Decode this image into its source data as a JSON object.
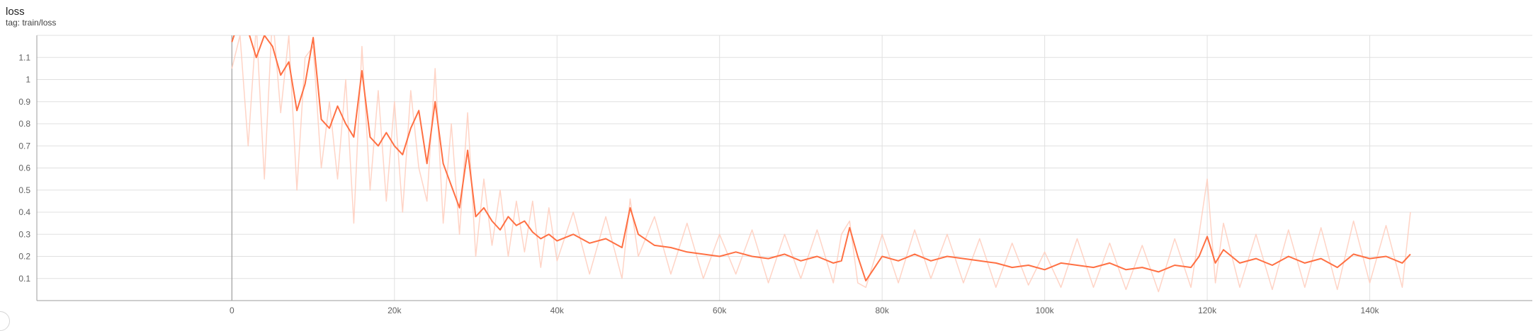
{
  "card": {
    "title": "loss",
    "subtitle": "tag: train/loss"
  },
  "colors": {
    "smoothed": "#ff7043",
    "raw": "#ffccbc",
    "grid": "#e0e0e0",
    "axis": "#9e9e9e"
  },
  "chart_data": {
    "type": "line",
    "title": "loss",
    "xlabel": "",
    "ylabel": "",
    "xlim": [
      -24000,
      160000
    ],
    "ylim": [
      0,
      1.2
    ],
    "x_ticks": [
      0,
      20000,
      40000,
      60000,
      80000,
      100000,
      120000,
      140000
    ],
    "x_tick_labels": [
      "0",
      "20k",
      "40k",
      "60k",
      "80k",
      "100k",
      "120k",
      "140k"
    ],
    "y_ticks": [
      0.1,
      0.2,
      0.3,
      0.4,
      0.5,
      0.6,
      0.7,
      0.8,
      0.9,
      1,
      1.1
    ],
    "y_tick_labels": [
      "0.1",
      "0.2",
      "0.3",
      "0.4",
      "0.5",
      "0.6",
      "0.7",
      "0.8",
      "0.9",
      "1",
      "1.1"
    ],
    "grid": true,
    "legend": "none",
    "series": [
      {
        "role": "smoothed",
        "x": [
          0,
          1000,
          2000,
          3000,
          4000,
          5000,
          6000,
          7000,
          8000,
          9000,
          10000,
          11000,
          12000,
          13000,
          14000,
          15000,
          16000,
          17000,
          18000,
          19000,
          20000,
          21000,
          22000,
          23000,
          24000,
          25000,
          26000,
          27000,
          28000,
          29000,
          30000,
          31000,
          32000,
          33000,
          34000,
          35000,
          36000,
          37000,
          38000,
          39000,
          40000,
          42000,
          44000,
          46000,
          48000,
          49000,
          50000,
          52000,
          54000,
          56000,
          58000,
          60000,
          62000,
          64000,
          66000,
          68000,
          70000,
          72000,
          74000,
          75000,
          76000,
          77000,
          78000,
          80000,
          82000,
          84000,
          86000,
          88000,
          90000,
          92000,
          94000,
          96000,
          98000,
          100000,
          102000,
          104000,
          106000,
          108000,
          110000,
          112000,
          114000,
          116000,
          118000,
          119000,
          120000,
          121000,
          122000,
          124000,
          126000,
          128000,
          130000,
          132000,
          134000,
          136000,
          138000,
          140000,
          142000,
          144000,
          145000
        ],
        "y": [
          1.17,
          1.28,
          1.22,
          1.1,
          1.2,
          1.15,
          1.02,
          1.08,
          0.86,
          0.98,
          1.19,
          0.82,
          0.78,
          0.88,
          0.8,
          0.74,
          1.04,
          0.74,
          0.7,
          0.76,
          0.7,
          0.66,
          0.78,
          0.86,
          0.62,
          0.9,
          0.62,
          0.52,
          0.42,
          0.68,
          0.38,
          0.42,
          0.36,
          0.32,
          0.38,
          0.34,
          0.36,
          0.31,
          0.28,
          0.3,
          0.27,
          0.3,
          0.26,
          0.28,
          0.24,
          0.42,
          0.3,
          0.25,
          0.24,
          0.22,
          0.21,
          0.2,
          0.22,
          0.2,
          0.19,
          0.21,
          0.18,
          0.2,
          0.17,
          0.18,
          0.33,
          0.2,
          0.09,
          0.2,
          0.18,
          0.21,
          0.18,
          0.2,
          0.19,
          0.18,
          0.17,
          0.15,
          0.16,
          0.14,
          0.17,
          0.16,
          0.15,
          0.17,
          0.14,
          0.15,
          0.13,
          0.16,
          0.15,
          0.2,
          0.29,
          0.17,
          0.23,
          0.17,
          0.19,
          0.16,
          0.2,
          0.17,
          0.19,
          0.15,
          0.21,
          0.19,
          0.2,
          0.17,
          0.21
        ]
      },
      {
        "role": "raw",
        "x": [
          0,
          1000,
          2000,
          3000,
          4000,
          5000,
          6000,
          7000,
          8000,
          9000,
          10000,
          11000,
          12000,
          13000,
          14000,
          15000,
          16000,
          17000,
          18000,
          19000,
          20000,
          21000,
          22000,
          23000,
          24000,
          25000,
          26000,
          27000,
          28000,
          29000,
          30000,
          31000,
          32000,
          33000,
          34000,
          35000,
          36000,
          37000,
          38000,
          39000,
          40000,
          42000,
          44000,
          46000,
          48000,
          49000,
          50000,
          52000,
          54000,
          56000,
          58000,
          60000,
          62000,
          64000,
          66000,
          68000,
          70000,
          72000,
          74000,
          75000,
          76000,
          77000,
          78000,
          80000,
          82000,
          84000,
          86000,
          88000,
          90000,
          92000,
          94000,
          96000,
          98000,
          100000,
          102000,
          104000,
          106000,
          108000,
          110000,
          112000,
          114000,
          116000,
          118000,
          119000,
          120000,
          121000,
          122000,
          124000,
          126000,
          128000,
          130000,
          132000,
          134000,
          136000,
          138000,
          140000,
          142000,
          144000,
          145000
        ],
        "y": [
          1.05,
          1.2,
          0.7,
          1.25,
          0.55,
          1.3,
          0.85,
          1.2,
          0.5,
          1.1,
          1.15,
          0.6,
          0.9,
          0.55,
          1.0,
          0.35,
          1.15,
          0.5,
          0.95,
          0.45,
          0.9,
          0.4,
          0.95,
          0.6,
          0.45,
          1.05,
          0.35,
          0.8,
          0.3,
          0.85,
          0.2,
          0.55,
          0.25,
          0.5,
          0.2,
          0.45,
          0.22,
          0.45,
          0.15,
          0.42,
          0.18,
          0.4,
          0.12,
          0.38,
          0.1,
          0.46,
          0.2,
          0.38,
          0.12,
          0.35,
          0.1,
          0.3,
          0.12,
          0.32,
          0.08,
          0.3,
          0.1,
          0.32,
          0.08,
          0.3,
          0.36,
          0.08,
          0.06,
          0.3,
          0.08,
          0.32,
          0.1,
          0.3,
          0.08,
          0.28,
          0.06,
          0.26,
          0.07,
          0.22,
          0.06,
          0.28,
          0.06,
          0.26,
          0.05,
          0.25,
          0.04,
          0.28,
          0.06,
          0.3,
          0.55,
          0.08,
          0.35,
          0.06,
          0.3,
          0.05,
          0.32,
          0.06,
          0.33,
          0.05,
          0.36,
          0.08,
          0.34,
          0.06,
          0.4
        ]
      }
    ]
  }
}
